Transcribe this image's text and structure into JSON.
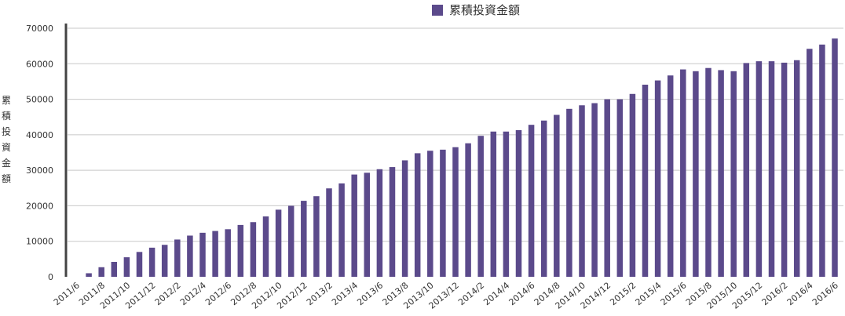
{
  "chart_data": {
    "type": "bar",
    "title": "",
    "legend": [
      {
        "label": "累積投資金額",
        "color": "#5b4a8b"
      }
    ],
    "legend_position": "top",
    "ylabel": "累積投資金額",
    "xlabel": "",
    "ylim": [
      0,
      70000
    ],
    "yticks": [
      0,
      10000,
      20000,
      30000,
      40000,
      50000,
      60000,
      70000
    ],
    "grid": true,
    "categories": [
      "2011/6",
      "2011/7",
      "2011/8",
      "2011/9",
      "2011/10",
      "2011/11",
      "2011/12",
      "2012/1",
      "2012/2",
      "2012/3",
      "2012/4",
      "2012/5",
      "2012/6",
      "2012/7",
      "2012/8",
      "2012/9",
      "2012/10",
      "2012/11",
      "2012/12",
      "2013/1",
      "2013/2",
      "2013/3",
      "2013/4",
      "2013/5",
      "2013/6",
      "2013/7",
      "2013/8",
      "2013/9",
      "2013/10",
      "2013/11",
      "2013/12",
      "2014/1",
      "2014/2",
      "2014/3",
      "2014/4",
      "2014/5",
      "2014/6",
      "2014/7",
      "2014/8",
      "2014/9",
      "2014/10",
      "2014/11",
      "2014/12",
      "2015/1",
      "2015/2",
      "2015/3",
      "2015/4",
      "2015/5",
      "2015/6",
      "2015/7",
      "2015/8",
      "2015/9",
      "2015/10",
      "2015/11",
      "2015/12",
      "2016/1",
      "2016/2",
      "2016/3",
      "2016/4",
      "2016/5",
      "2016/6"
    ],
    "xtick_labels": [
      "2011/6",
      "2011/8",
      "2011/10",
      "2011/12",
      "2012/2",
      "2012/4",
      "2012/6",
      "2012/8",
      "2012/10",
      "2012/12",
      "2013/2",
      "2013/4",
      "2013/6",
      "2013/8",
      "2013/10",
      "2013/12",
      "2014/2",
      "2014/4",
      "2014/6",
      "2014/8",
      "2014/10",
      "2014/12",
      "2015/2",
      "2015/4",
      "2015/6",
      "2015/8",
      "2015/10",
      "2015/12",
      "2016/2",
      "2016/4",
      "2016/6"
    ],
    "series": [
      {
        "name": "累積投資金額",
        "color": "#5b4a8b",
        "values": [
          0,
          1000,
          2700,
          4200,
          5500,
          7000,
          8200,
          9000,
          10500,
          11600,
          12400,
          12900,
          13400,
          14600,
          15400,
          17000,
          18900,
          20000,
          21400,
          22700,
          24900,
          26300,
          28800,
          29300,
          30300,
          30900,
          32800,
          34800,
          35500,
          35800,
          36500,
          37600,
          39700,
          40900,
          40900,
          41300,
          42800,
          44000,
          45600,
          47300,
          48300,
          48900,
          50000,
          50000,
          51500,
          54100,
          55300,
          56700,
          58400,
          57900,
          58800,
          58200,
          57900,
          60200,
          60700,
          60700,
          60300,
          61000,
          64200,
          65400,
          67100
        ]
      }
    ]
  }
}
